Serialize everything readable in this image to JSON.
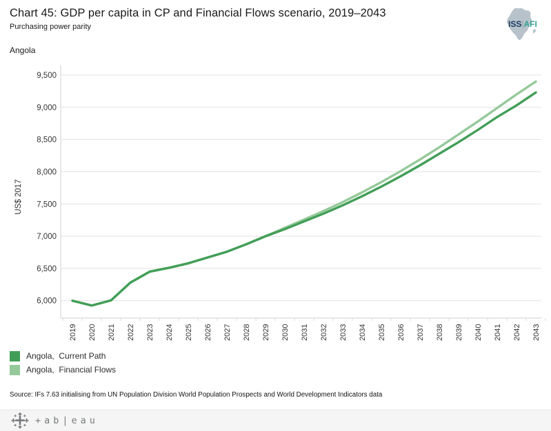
{
  "header": {
    "title": "Chart 45: GDP per capita in CP and Financial Flows scenario, 2019–2043",
    "subtitle": "Purchasing power parity",
    "region_label": "Angola"
  },
  "logo": {
    "org": "ISS",
    "bar": "|",
    "division": "AFI"
  },
  "chart_data": {
    "type": "line",
    "title": "GDP per capita in CP and Financial Flows scenario, 2019–2043",
    "xlabel": "",
    "ylabel": "US$ 2017",
    "x": [
      2019,
      2020,
      2021,
      2022,
      2023,
      2024,
      2025,
      2026,
      2027,
      2028,
      2029,
      2030,
      2031,
      2032,
      2033,
      2034,
      2035,
      2036,
      2037,
      2038,
      2039,
      2040,
      2041,
      2042,
      2043
    ],
    "series": [
      {
        "name": "Angola,  Current Path",
        "color": "#429e57",
        "values": [
          6000,
          5925,
          6005,
          6280,
          6450,
          6510,
          6580,
          6670,
          6760,
          6875,
          7000,
          7110,
          7230,
          7350,
          7480,
          7620,
          7770,
          7930,
          8100,
          8280,
          8460,
          8650,
          8850,
          9030,
          9230
        ]
      },
      {
        "name": "Angola,  Financial Flows",
        "color": "#95c99a",
        "values": [
          6000,
          5925,
          6005,
          6280,
          6450,
          6510,
          6580,
          6670,
          6760,
          6875,
          7000,
          7130,
          7260,
          7390,
          7530,
          7680,
          7840,
          8010,
          8190,
          8380,
          8580,
          8780,
          8990,
          9200,
          9400
        ]
      }
    ],
    "ytick_values": [
      6000,
      6500,
      7000,
      7500,
      8000,
      8500,
      9000,
      9500
    ],
    "ytick_labels": [
      "6,000",
      "6,500",
      "7,000",
      "7,500",
      "8,000",
      "8,500",
      "9,000",
      "9,500"
    ],
    "ylim": [
      5730,
      9650
    ],
    "grid": "horizontal",
    "legend_position": "bottom-left"
  },
  "source": {
    "text": "Source: IFs 7.63 initialising from UN Population Division World Population Prospects and World Development Indicators data"
  },
  "footer": {
    "brand_text": "+ab|eau"
  }
}
